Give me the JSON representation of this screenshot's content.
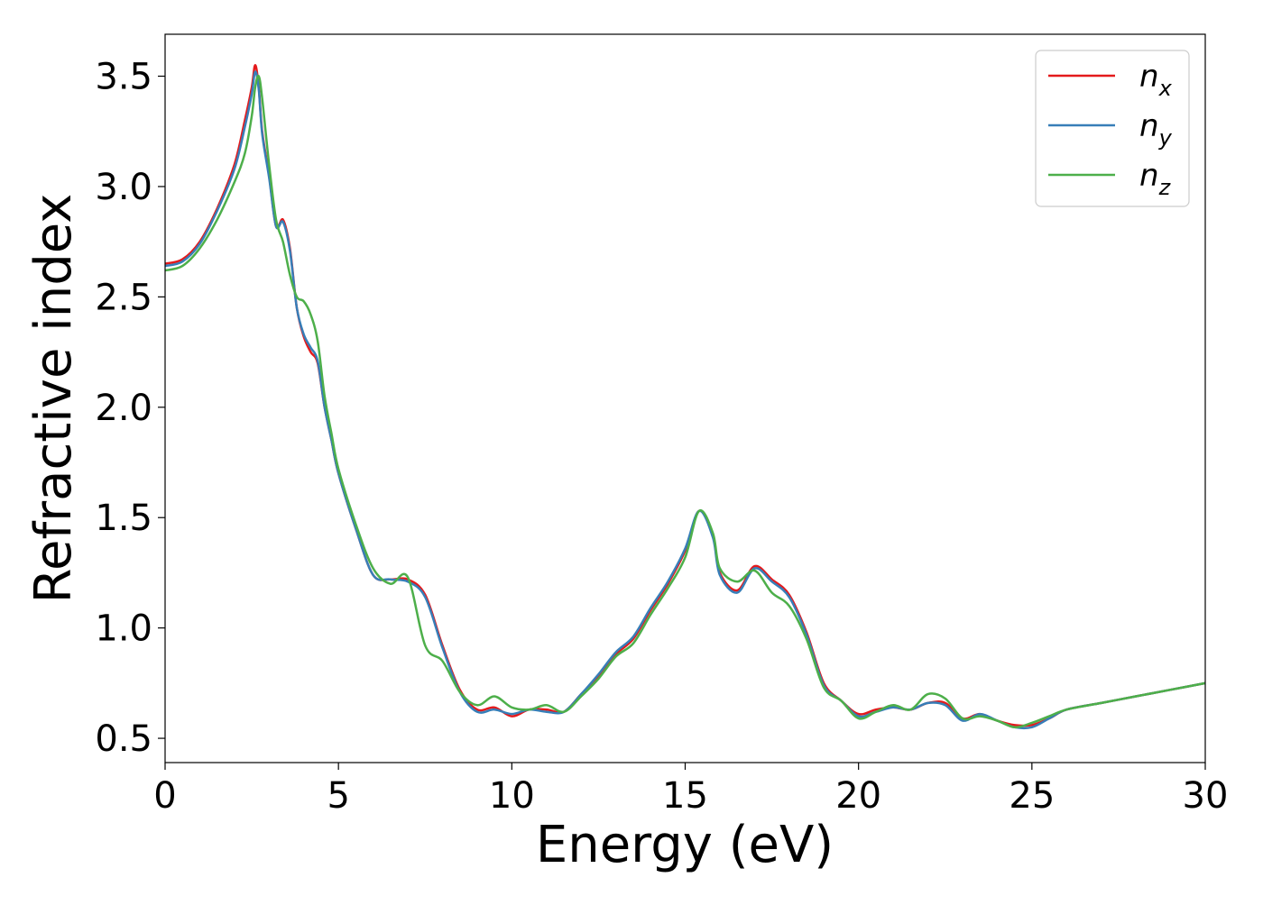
{
  "chart_data": {
    "type": "line",
    "title": "",
    "xlabel": "Energy (eV)",
    "ylabel": "Refractive index",
    "xlim": [
      0,
      30
    ],
    "ylim": [
      0.39,
      3.69
    ],
    "xticks": [
      0,
      5,
      10,
      15,
      20,
      25,
      30
    ],
    "xtick_labels": [
      "0",
      "5",
      "10",
      "15",
      "20",
      "25",
      "30"
    ],
    "yticks": [
      0.5,
      1.0,
      1.5,
      2.0,
      2.5,
      3.0,
      3.5
    ],
    "ytick_labels": [
      "0.5",
      "1.0",
      "1.5",
      "2.0",
      "2.5",
      "3.0",
      "3.5"
    ],
    "grid": false,
    "legend": "top-right",
    "series": [
      {
        "name": "n",
        "subscript": "x",
        "color": "#e41a1c",
        "x": [
          0,
          0.5,
          1.0,
          1.5,
          2.0,
          2.3,
          2.5,
          2.6,
          2.7,
          2.8,
          3.0,
          3.2,
          3.4,
          3.6,
          3.8,
          4.0,
          4.2,
          4.4,
          4.6,
          4.8,
          5.0,
          5.5,
          6.0,
          6.5,
          7.0,
          7.5,
          8.0,
          8.5,
          9.0,
          9.5,
          10.0,
          10.5,
          11.0,
          11.5,
          12.0,
          12.5,
          13.0,
          13.5,
          14.0,
          14.5,
          15.0,
          15.4,
          15.8,
          16.0,
          16.5,
          17.0,
          17.5,
          18.0,
          18.5,
          19.0,
          19.5,
          20.0,
          20.5,
          21.0,
          21.5,
          22.0,
          22.5,
          23.0,
          23.5,
          24.0,
          24.5,
          25.0,
          25.5,
          26.0,
          27.0,
          28.0,
          29.0,
          30.0
        ],
        "values": [
          2.65,
          2.67,
          2.75,
          2.9,
          3.1,
          3.3,
          3.45,
          3.55,
          3.45,
          3.25,
          3.05,
          2.82,
          2.85,
          2.72,
          2.45,
          2.32,
          2.25,
          2.2,
          2.0,
          1.85,
          1.7,
          1.45,
          1.24,
          1.22,
          1.22,
          1.15,
          0.92,
          0.72,
          0.63,
          0.64,
          0.6,
          0.63,
          0.63,
          0.62,
          0.7,
          0.78,
          0.88,
          0.95,
          1.08,
          1.2,
          1.35,
          1.53,
          1.42,
          1.25,
          1.17,
          1.28,
          1.22,
          1.15,
          0.98,
          0.75,
          0.67,
          0.61,
          0.63,
          0.64,
          0.63,
          0.66,
          0.66,
          0.59,
          0.61,
          0.58,
          0.56,
          0.56,
          0.59,
          0.63,
          0.66,
          0.69,
          0.72,
          0.75
        ]
      },
      {
        "name": "n",
        "subscript": "y",
        "color": "#377eb8",
        "x": [
          0,
          0.5,
          1.0,
          1.5,
          2.0,
          2.3,
          2.5,
          2.6,
          2.7,
          2.8,
          3.0,
          3.2,
          3.4,
          3.6,
          3.8,
          4.0,
          4.2,
          4.4,
          4.6,
          4.8,
          5.0,
          5.5,
          6.0,
          6.5,
          7.0,
          7.5,
          8.0,
          8.5,
          9.0,
          9.5,
          10.0,
          10.5,
          11.0,
          11.5,
          12.0,
          12.5,
          13.0,
          13.5,
          14.0,
          14.5,
          15.0,
          15.4,
          15.8,
          16.0,
          16.5,
          17.0,
          17.5,
          18.0,
          18.5,
          19.0,
          19.5,
          20.0,
          20.5,
          21.0,
          21.5,
          22.0,
          22.5,
          23.0,
          23.5,
          24.0,
          24.5,
          25.0,
          25.5,
          26.0,
          27.0,
          28.0,
          29.0,
          30.0
        ],
        "values": [
          2.64,
          2.66,
          2.74,
          2.89,
          3.08,
          3.27,
          3.42,
          3.52,
          3.44,
          3.24,
          3.04,
          2.82,
          2.84,
          2.71,
          2.45,
          2.33,
          2.27,
          2.21,
          2.0,
          1.85,
          1.7,
          1.45,
          1.24,
          1.22,
          1.21,
          1.14,
          0.91,
          0.71,
          0.62,
          0.63,
          0.61,
          0.63,
          0.62,
          0.62,
          0.7,
          0.79,
          0.89,
          0.96,
          1.09,
          1.21,
          1.36,
          1.53,
          1.41,
          1.24,
          1.16,
          1.27,
          1.21,
          1.14,
          0.97,
          0.74,
          0.67,
          0.6,
          0.62,
          0.64,
          0.63,
          0.66,
          0.65,
          0.58,
          0.61,
          0.58,
          0.55,
          0.55,
          0.59,
          0.63,
          0.66,
          0.69,
          0.72,
          0.75
        ]
      },
      {
        "name": "n",
        "subscript": "z",
        "color": "#4daf4a",
        "x": [
          0,
          0.5,
          1.0,
          1.5,
          2.0,
          2.3,
          2.5,
          2.6,
          2.7,
          2.8,
          3.0,
          3.2,
          3.4,
          3.6,
          3.8,
          4.0,
          4.2,
          4.4,
          4.6,
          4.8,
          5.0,
          5.5,
          6.0,
          6.5,
          7.0,
          7.5,
          8.0,
          8.5,
          9.0,
          9.5,
          10.0,
          10.5,
          11.0,
          11.5,
          12.0,
          12.5,
          13.0,
          13.5,
          14.0,
          14.5,
          15.0,
          15.4,
          15.8,
          16.0,
          16.5,
          17.0,
          17.5,
          18.0,
          18.5,
          19.0,
          19.5,
          20.0,
          20.5,
          21.0,
          21.5,
          22.0,
          22.5,
          23.0,
          23.5,
          24.0,
          24.5,
          25.0,
          25.5,
          26.0,
          27.0,
          28.0,
          29.0,
          30.0
        ],
        "values": [
          2.62,
          2.64,
          2.72,
          2.85,
          3.02,
          3.15,
          3.32,
          3.45,
          3.5,
          3.4,
          3.1,
          2.85,
          2.75,
          2.6,
          2.5,
          2.48,
          2.42,
          2.3,
          2.05,
          1.88,
          1.72,
          1.47,
          1.27,
          1.2,
          1.23,
          0.92,
          0.85,
          0.71,
          0.65,
          0.69,
          0.64,
          0.63,
          0.65,
          0.62,
          0.69,
          0.77,
          0.87,
          0.93,
          1.06,
          1.18,
          1.32,
          1.53,
          1.43,
          1.27,
          1.21,
          1.26,
          1.16,
          1.1,
          0.95,
          0.73,
          0.67,
          0.59,
          0.62,
          0.65,
          0.63,
          0.7,
          0.68,
          0.59,
          0.6,
          0.58,
          0.55,
          0.57,
          0.6,
          0.63,
          0.66,
          0.69,
          0.72,
          0.75
        ]
      }
    ]
  }
}
